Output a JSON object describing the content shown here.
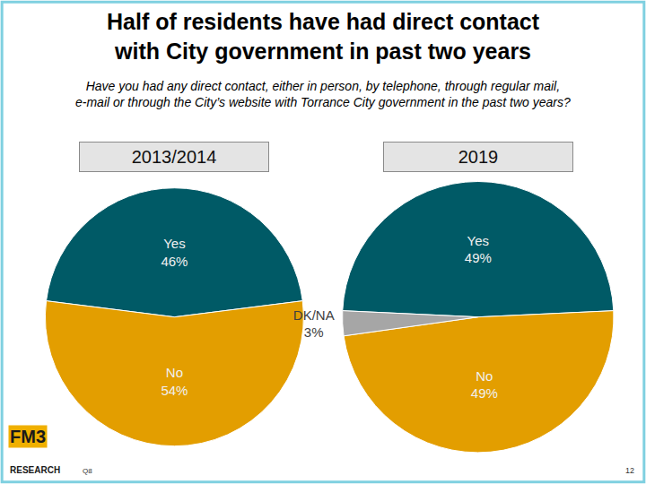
{
  "title": [
    "Half of residents have had direct contact",
    "with City government in past two years"
  ],
  "subtitle": [
    "Have you had any direct contact, either in person, by telephone, through regular mail,",
    "e-mail or through the City’s website with Torrance City government in the past two years?"
  ],
  "footer": {
    "logo": "FM3",
    "logo_sub": "RESEARCH",
    "question": "Q8",
    "page": "12"
  },
  "chart_data": [
    {
      "type": "pie",
      "title": "2013/2014",
      "categories": [
        "Yes",
        "No"
      ],
      "values": [
        46,
        54
      ],
      "value_labels": [
        "46%",
        "54%"
      ],
      "colors": [
        "#005a66",
        "#e39e00"
      ],
      "data_labels": true
    },
    {
      "type": "pie",
      "title": "2019",
      "categories": [
        "Yes",
        "No",
        "DK/NA"
      ],
      "values": [
        49,
        49,
        3
      ],
      "value_labels": [
        "49%",
        "49%",
        "3%"
      ],
      "colors": [
        "#005a66",
        "#e39e00",
        "#a6a6a6"
      ],
      "data_labels": true
    }
  ]
}
